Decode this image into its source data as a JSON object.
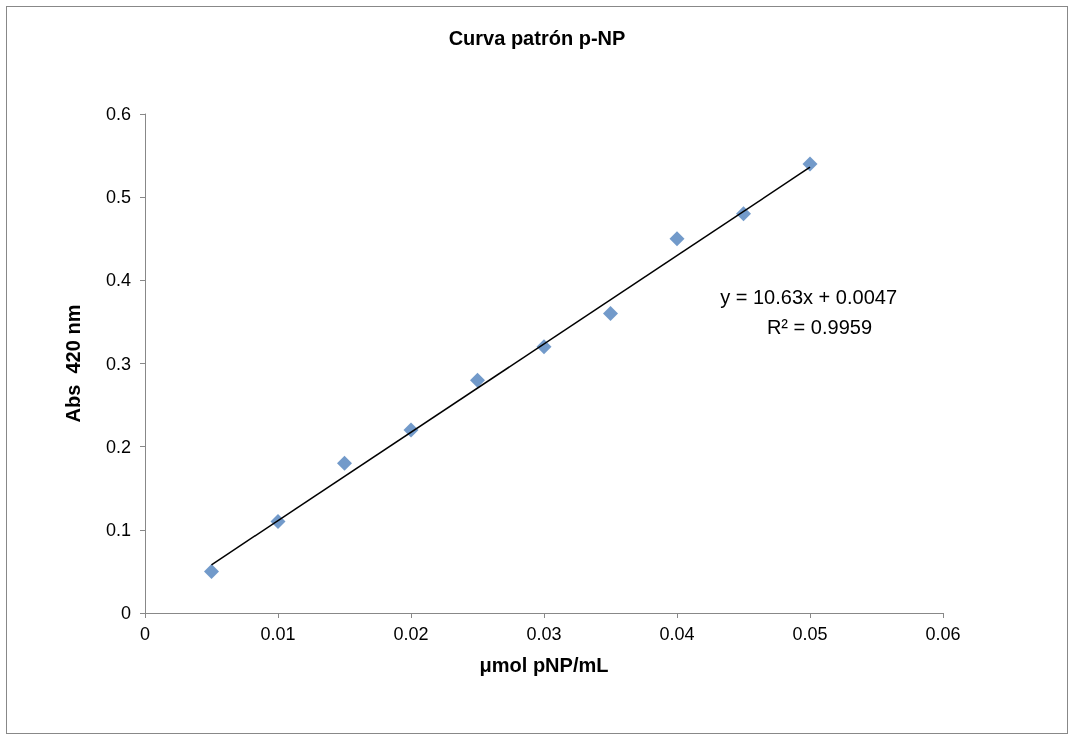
{
  "chart_data": {
    "type": "scatter",
    "title": "Curva patrón p-NP",
    "xlabel": "μmol pNP/mL",
    "ylabel": "Abs  420 nm",
    "series": [
      {
        "color": "#4f81bd",
        "marker": "diamond",
        "x": [
          0.005,
          0.01,
          0.015,
          0.02,
          0.025,
          0.03,
          0.035,
          0.04,
          0.045,
          0.05
        ],
        "values": [
          0.05,
          0.11,
          0.18,
          0.22,
          0.28,
          0.32,
          0.36,
          0.45,
          0.48,
          0.54
        ]
      },
      {
        "type": "line",
        "color": "#000000",
        "marker": "none",
        "line_style": "solid",
        "x": [
          0.005,
          0.05
        ],
        "values": [
          0.058,
          0.536
        ]
      }
    ],
    "xlim": [
      0,
      0.06
    ],
    "xticks": [
      0,
      0.01,
      0.02,
      0.03,
      0.04,
      0.05,
      0.06
    ],
    "ylim": [
      0,
      0.6
    ],
    "yticks": [
      0,
      0.1,
      0.2,
      0.3,
      0.4,
      0.5,
      0.6
    ],
    "grid": false,
    "annotations": [
      "y = 10.63x + 0.0047",
      "R² = 0.9959"
    ]
  }
}
